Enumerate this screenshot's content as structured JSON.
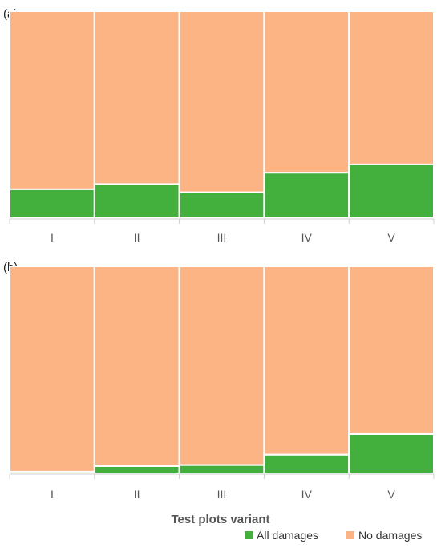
{
  "colors": {
    "all_damages": "#43b03e",
    "no_damages": "#fdb485",
    "bar_border": "#ffffff"
  },
  "chart_data": [
    {
      "type": "bar",
      "stacked": true,
      "normalized": true,
      "panel_label": "(a)",
      "categories": [
        "I",
        "II",
        "III",
        "IV",
        "V"
      ],
      "series": [
        {
          "name": "All damages",
          "values": [
            14,
            16.5,
            12.5,
            22,
            26
          ]
        },
        {
          "name": "No damages",
          "values": [
            86,
            83.5,
            87.5,
            78,
            74
          ]
        }
      ],
      "ylim": [
        0,
        100
      ]
    },
    {
      "type": "bar",
      "stacked": true,
      "normalized": true,
      "panel_label": "(b)",
      "categories": [
        "I",
        "II",
        "III",
        "IV",
        "V"
      ],
      "series": [
        {
          "name": "All damages",
          "values": [
            0.8,
            3.5,
            4,
            9,
            19
          ]
        },
        {
          "name": "No damages",
          "values": [
            99.2,
            96.5,
            96,
            91,
            81
          ]
        }
      ],
      "ylim": [
        0,
        100
      ]
    }
  ],
  "xlabel": "Test plots variant",
  "legend": {
    "position": "bottom-right",
    "items": [
      {
        "label": "All damages"
      },
      {
        "label": "No damages"
      }
    ]
  }
}
